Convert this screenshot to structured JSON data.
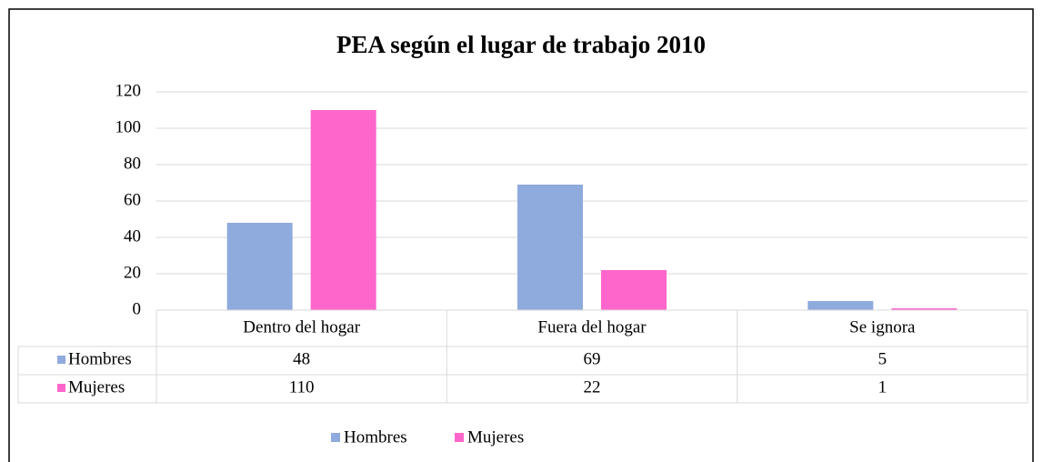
{
  "chart_data": {
    "type": "bar",
    "title": "PEA según el lugar de trabajo 2010",
    "categories": [
      "Dentro del hogar",
      "Fuera del hogar",
      "Se ignora"
    ],
    "series": [
      {
        "name": "Hombres",
        "color": "#8faadc",
        "values": [
          48,
          69,
          5
        ]
      },
      {
        "name": "Mujeres",
        "color": "#ff66cc",
        "values": [
          110,
          22,
          1
        ]
      }
    ],
    "ylim": [
      0,
      120
    ],
    "yticks": [
      0,
      20,
      40,
      60,
      80,
      100,
      120
    ],
    "grid": true,
    "legend": "bottom",
    "data_table": true
  }
}
